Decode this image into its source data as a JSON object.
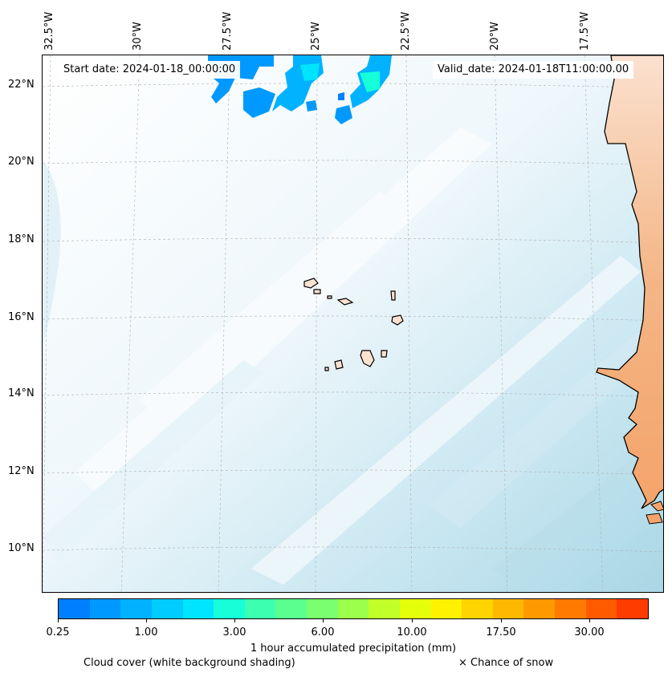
{
  "map": {
    "start_date": "Start date: 2024-01-18_00:00:00",
    "valid_date": "Valid_date: 2024-01-18T11:00:00.00",
    "lon_labels": [
      "32.5°W",
      "30°W",
      "27.5°W",
      "25°W",
      "22.5°W",
      "20°W",
      "17.5°W"
    ],
    "lat_labels": [
      "22°N",
      "20°N",
      "18°N",
      "16°N",
      "14°N",
      "12°N",
      "10°N"
    ],
    "colors": {
      "land": "#f4a46a",
      "coast": "#000000",
      "cloud": "#a9d6e5",
      "gridline": "#b0b0b0"
    }
  },
  "colorbar": {
    "label": "1 hour accumulated precipitation (mm)",
    "ticks": [
      "0.25",
      "1.00",
      "3.00",
      "6.00",
      "10.00",
      "17.50",
      "30.00"
    ],
    "colors": [
      "#0080ff",
      "#0099ff",
      "#00b2ff",
      "#00ccff",
      "#00e5ff",
      "#16ffd8",
      "#3dffb0",
      "#5aff8f",
      "#7aff6e",
      "#9cff4c",
      "#c1ff29",
      "#e5ff0a",
      "#fff200",
      "#ffd500",
      "#ffb800",
      "#ff9900",
      "#ff7a00",
      "#ff5a00",
      "#ff3c00"
    ]
  },
  "legend": {
    "cloud_note": "Cloud cover (white background shading)",
    "snow_note": "× Chance of snow"
  }
}
